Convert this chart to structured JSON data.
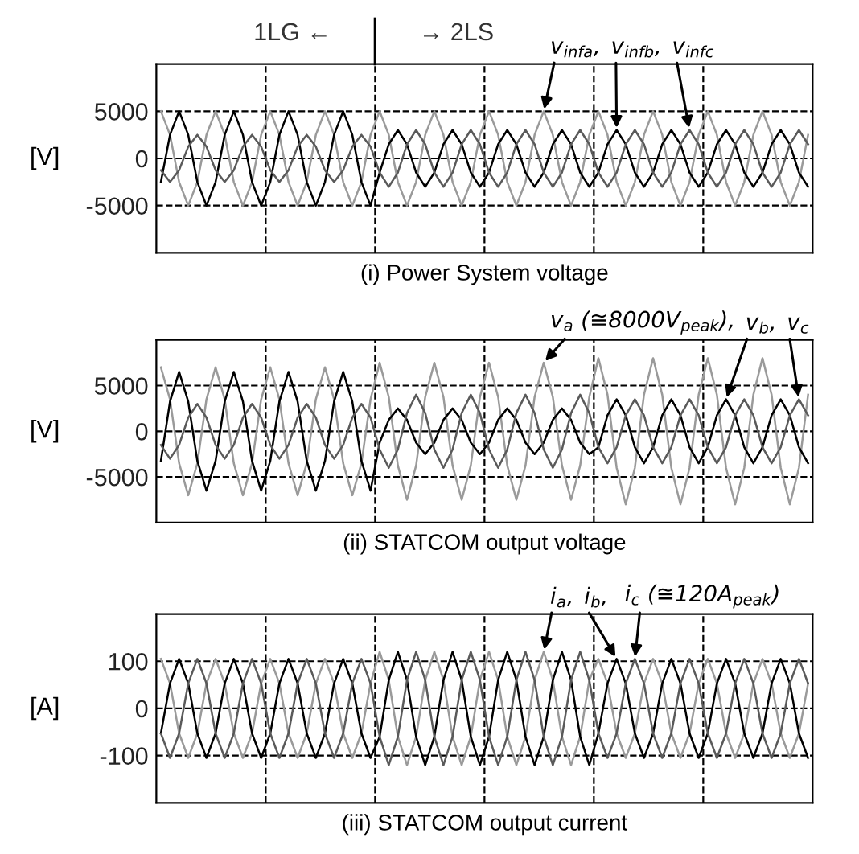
{
  "chart_data": [
    {
      "type": "line",
      "title": "(i) Power System voltage",
      "ylabel": "[V]",
      "categories": [
        null,
        null,
        null,
        null,
        null,
        null,
        null,
        null,
        null,
        null,
        null,
        null,
        null,
        null,
        null,
        null,
        null,
        null,
        null,
        null,
        null,
        null,
        null,
        null,
        null,
        null,
        null,
        null,
        null,
        null,
        null,
        null,
        null,
        null,
        null,
        null,
        null,
        null,
        null,
        null,
        null,
        null,
        null,
        null,
        null,
        null,
        null,
        null,
        null,
        null,
        null,
        null,
        null,
        null,
        null,
        null,
        null,
        null,
        null,
        null,
        null,
        null,
        null,
        null,
        null,
        null,
        null,
        null,
        null,
        null,
        null,
        null
      ],
      "ylim": [
        -10000,
        10000
      ],
      "yticks": [
        -5000,
        0,
        5000
      ],
      "grid": true,
      "line_style": "solid",
      "annotations": [
        "1LG ←",
        "→ 2LS"
      ],
      "series": [
        {
          "name": "v$_{infa}$,",
          "color": "#9a9a9a",
          "values": [
            5000,
            2500,
            -2500,
            -5000,
            -2500,
            2500,
            5000,
            2500,
            -2500,
            -5000,
            -2500,
            2500,
            5000,
            2500,
            -2500,
            -5000,
            -2500,
            2500,
            5000,
            2500,
            -2500,
            -5000,
            -2500,
            2500,
            5000,
            2500,
            -2500,
            -5000,
            -2500,
            2500,
            5000,
            2500,
            -2500,
            -5000,
            -2500,
            2500,
            5000,
            2500,
            -2500,
            -5000,
            -2500,
            2500,
            5000,
            2500,
            -2500,
            -5000,
            -2500,
            2500,
            5000,
            2500,
            -2500,
            -5000,
            -2500,
            2500,
            5000,
            2500,
            -2500,
            -5000,
            -2500,
            2500,
            5000,
            2500,
            -2500,
            -5000,
            -2500,
            2500,
            5000,
            2500,
            -2500,
            -5000,
            -2500,
            2500
          ]
        },
        {
          "name": "v$_{infb}$,",
          "color": "#000000",
          "values": [
            -2500,
            2500,
            5000,
            2500,
            -2500,
            -5000,
            -2500,
            2500,
            5000,
            2500,
            -2500,
            -5000,
            -2500,
            2500,
            5000,
            2500,
            -2500,
            -5000,
            -2500,
            2500,
            5000,
            2500,
            -2500,
            -5000,
            -1500,
            1500,
            3000,
            1500,
            -1500,
            -3000,
            -1500,
            1500,
            3000,
            1500,
            -1500,
            -3000,
            -1500,
            1500,
            3000,
            1500,
            -1500,
            -3000,
            -1500,
            1500,
            3000,
            1500,
            -1500,
            -3000,
            -1500,
            1500,
            3000,
            1500,
            -1500,
            -3000,
            -1500,
            1500,
            3000,
            1500,
            -1500,
            -3000,
            -1500,
            1500,
            3000,
            1500,
            -1500,
            -3000,
            -1500,
            1500,
            3000,
            1500,
            -1500,
            -3000
          ]
        },
        {
          "name": "v$_{infc}$",
          "color": "#5a5a5a",
          "values": [
            -1250,
            -2500,
            -1250,
            1250,
            2500,
            1250,
            -1250,
            -2500,
            -1250,
            1250,
            2500,
            1250,
            -1250,
            -2500,
            -1250,
            1250,
            2500,
            1250,
            -1250,
            -2500,
            -1250,
            1250,
            2500,
            1250,
            -1500,
            -3000,
            -1500,
            1500,
            3000,
            1500,
            -1500,
            -3000,
            -1500,
            1500,
            3000,
            1500,
            -1500,
            -3000,
            -1500,
            1500,
            3000,
            1500,
            -1500,
            -3000,
            -1500,
            1500,
            3000,
            1500,
            -1500,
            -3000,
            -1500,
            1500,
            3000,
            1500,
            -1500,
            -3000,
            -1500,
            1500,
            3000,
            1500,
            -1500,
            -3000,
            -1500,
            1500,
            3000,
            1500,
            -1500,
            -3000,
            -1500,
            1500,
            3000,
            1500
          ]
        }
      ]
    },
    {
      "type": "line",
      "title": "(ii) STATCOM output voltage",
      "ylabel": "[V]",
      "categories": [
        null,
        null,
        null,
        null,
        null,
        null,
        null,
        null,
        null,
        null,
        null,
        null,
        null,
        null,
        null,
        null,
        null,
        null,
        null,
        null,
        null,
        null,
        null,
        null,
        null,
        null,
        null,
        null,
        null,
        null,
        null,
        null,
        null,
        null,
        null,
        null,
        null,
        null,
        null,
        null,
        null,
        null,
        null,
        null,
        null,
        null,
        null,
        null,
        null,
        null,
        null,
        null,
        null,
        null,
        null,
        null,
        null,
        null,
        null,
        null,
        null,
        null,
        null,
        null,
        null,
        null,
        null,
        null,
        null,
        null,
        null,
        null
      ],
      "ylim": [
        -10000,
        10000
      ],
      "yticks": [
        -5000,
        0,
        5000
      ],
      "grid": true,
      "line_style": "solid",
      "series": [
        {
          "name": "v$_{a}$ (≅8000V$_{peak}$),",
          "color": "#9a9a9a",
          "values": [
            7000,
            3500,
            -3500,
            -7000,
            -3500,
            3500,
            7000,
            3500,
            -3500,
            -7000,
            -3500,
            3500,
            7000,
            3500,
            -3500,
            -7000,
            -3500,
            3500,
            7000,
            3500,
            -3500,
            -7000,
            -3500,
            3500,
            7500,
            3750,
            -3750,
            -7500,
            -3750,
            3750,
            7500,
            3750,
            -3750,
            -7500,
            -3750,
            3750,
            7500,
            3750,
            -3750,
            -7500,
            -3750,
            3750,
            7500,
            3750,
            -3750,
            -7500,
            -3750,
            3750,
            8000,
            4000,
            -4000,
            -8000,
            -4000,
            4000,
            8000,
            4000,
            -4000,
            -8000,
            -4000,
            4000,
            8000,
            4000,
            -4000,
            -8000,
            -4000,
            4000,
            8000,
            4000,
            -4000,
            -8000,
            -4000,
            4000
          ]
        },
        {
          "name": "v$_{b}$,",
          "color": "#000000",
          "values": [
            -3250,
            3250,
            6500,
            3250,
            -3250,
            -6500,
            -3250,
            3250,
            6500,
            3250,
            -3250,
            -6500,
            -3250,
            3250,
            6500,
            3250,
            -3250,
            -6500,
            -3250,
            3250,
            6500,
            3250,
            -3250,
            -6500,
            -1250,
            1250,
            2500,
            1250,
            -1250,
            -2500,
            -1250,
            1250,
            2500,
            1250,
            -1250,
            -2500,
            -1250,
            1250,
            2500,
            1250,
            -1250,
            -2500,
            -1250,
            1250,
            2500,
            1250,
            -1250,
            -2500,
            -1750,
            1750,
            3500,
            1750,
            -1750,
            -3500,
            -1750,
            1750,
            3500,
            1750,
            -1750,
            -3500,
            -1750,
            1750,
            3500,
            1750,
            -1750,
            -3500,
            -1750,
            1750,
            3500,
            1750,
            -1750,
            -3500
          ]
        },
        {
          "name": "v$_{c}$",
          "color": "#5a5a5a",
          "values": [
            -1500,
            -3000,
            -1500,
            1500,
            3000,
            1500,
            -1500,
            -3000,
            -1500,
            1500,
            3000,
            1500,
            -1500,
            -3000,
            -1500,
            1500,
            3000,
            1500,
            -1500,
            -3000,
            -1500,
            1500,
            3000,
            1500,
            -2000,
            -4000,
            -2000,
            2000,
            4000,
            2000,
            -2000,
            -4000,
            -2000,
            2000,
            4000,
            2000,
            -2000,
            -4000,
            -2000,
            2000,
            4000,
            2000,
            -2000,
            -4000,
            -2000,
            2000,
            4000,
            2000,
            -1750,
            -3500,
            -1750,
            1750,
            3500,
            1750,
            -1750,
            -3500,
            -1750,
            1750,
            3500,
            1750,
            -1750,
            -3500,
            -1750,
            1750,
            3500,
            1750,
            -1750,
            -3500,
            -1750,
            1750,
            3500,
            1750
          ]
        }
      ]
    },
    {
      "type": "line",
      "title": "(iii) STATCOM output current",
      "ylabel": "[A]",
      "categories": [
        null,
        null,
        null,
        null,
        null,
        null,
        null,
        null,
        null,
        null,
        null,
        null,
        null,
        null,
        null,
        null,
        null,
        null,
        null,
        null,
        null,
        null,
        null,
        null,
        null,
        null,
        null,
        null,
        null,
        null,
        null,
        null,
        null,
        null,
        null,
        null,
        null,
        null,
        null,
        null,
        null,
        null,
        null,
        null,
        null,
        null,
        null,
        null,
        null,
        null,
        null,
        null,
        null,
        null,
        null,
        null,
        null,
        null,
        null,
        null,
        null,
        null,
        null,
        null,
        null,
        null,
        null,
        null,
        null,
        null,
        null,
        null
      ],
      "ylim": [
        -200,
        200
      ],
      "yticks": [
        -100,
        0,
        100
      ],
      "grid": true,
      "line_style": "solid",
      "series": [
        {
          "name": "i$_{a}$,",
          "color": "#9a9a9a",
          "values": [
            105,
            53,
            -53,
            -105,
            -53,
            53,
            105,
            53,
            -53,
            -105,
            -53,
            53,
            105,
            53,
            -53,
            -105,
            -53,
            53,
            105,
            53,
            -53,
            -105,
            -53,
            53,
            120,
            60,
            -60,
            -120,
            -60,
            60,
            120,
            60,
            -60,
            -120,
            -60,
            60,
            120,
            60,
            -60,
            -120,
            -60,
            60,
            120,
            60,
            -60,
            -120,
            -60,
            60,
            105,
            53,
            -53,
            -105,
            -53,
            53,
            105,
            53,
            -53,
            -105,
            -53,
            53,
            105,
            53,
            -53,
            -105,
            -53,
            53,
            105,
            53,
            -53,
            -105,
            -53,
            53
          ]
        },
        {
          "name": "i$_{b}$,",
          "color": "#000000",
          "values": [
            -53,
            53,
            105,
            53,
            -53,
            -105,
            -53,
            53,
            105,
            53,
            -53,
            -105,
            -53,
            53,
            105,
            53,
            -53,
            -105,
            -53,
            53,
            105,
            53,
            -53,
            -105,
            -60,
            60,
            120,
            60,
            -60,
            -120,
            -60,
            60,
            120,
            60,
            -60,
            -120,
            -60,
            60,
            120,
            60,
            -60,
            -120,
            -60,
            60,
            120,
            60,
            -60,
            -120,
            -53,
            53,
            105,
            53,
            -53,
            -105,
            -53,
            53,
            105,
            53,
            -53,
            -105,
            -53,
            53,
            105,
            53,
            -53,
            -105,
            -53,
            53,
            105,
            53,
            -53,
            -105
          ]
        },
        {
          "name": "i$_{c}$ (≅120A$_{peak}$)",
          "color": "#5a5a5a",
          "values": [
            -53,
            -105,
            -53,
            53,
            105,
            53,
            -53,
            -105,
            -53,
            53,
            105,
            53,
            -53,
            -105,
            -53,
            53,
            105,
            53,
            -53,
            -105,
            -53,
            53,
            105,
            53,
            -60,
            -120,
            -60,
            60,
            120,
            60,
            -60,
            -120,
            -60,
            60,
            120,
            60,
            -60,
            -120,
            -60,
            60,
            120,
            60,
            -60,
            -120,
            -60,
            60,
            120,
            60,
            -53,
            -105,
            -53,
            53,
            105,
            53,
            -53,
            -105,
            -53,
            53,
            105,
            53,
            -53,
            -105,
            -53,
            53,
            105,
            53,
            -53,
            -105,
            -53,
            53,
            105,
            53
          ]
        }
      ]
    }
  ]
}
